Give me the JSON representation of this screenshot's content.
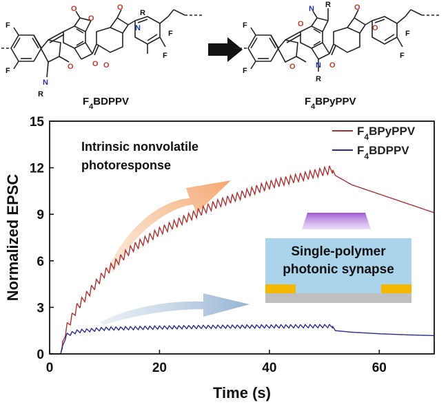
{
  "structures": {
    "left_label": {
      "base": "F",
      "sub": "4",
      "rest": "BDPPV"
    },
    "right_label": {
      "base": "F",
      "sub": "4",
      "rest": "BPyPPV"
    },
    "atoms": {
      "fluorine": "F",
      "oxygen": "O",
      "nitrogen": "N",
      "alkyl": "R"
    }
  },
  "inset": {
    "line1": "Single-polymer",
    "line2": "photonic synapse",
    "colors": {
      "box": "#a9d4ec",
      "light": "#9b59d0",
      "electrode": "#f5b800",
      "substrate": "#bfbfbf"
    }
  },
  "annotation": {
    "line1": "Intrinsic nonvolatile",
    "line2": "photoresponse"
  },
  "chart_data": {
    "type": "line",
    "xlabel": "Time (s)",
    "ylabel": "Normalized EPSC",
    "xlim": [
      0,
      70
    ],
    "ylim": [
      0,
      15
    ],
    "xticks": [
      0,
      20,
      40,
      60
    ],
    "yticks": [
      0,
      3,
      6,
      9,
      12,
      15
    ],
    "legend_position": "top-right",
    "light_pulses": {
      "start_s": 2,
      "end_s": 51.5,
      "count": 56
    },
    "series": [
      {
        "name": "F4BPyPPV",
        "legend": {
          "base": "F",
          "sub": "4",
          "rest": "BPyPPV"
        },
        "color": "#b03030",
        "points": [
          [
            0,
            0
          ],
          [
            2,
            0
          ],
          [
            3,
            1.6
          ],
          [
            5,
            3.0
          ],
          [
            10,
            5.2
          ],
          [
            15,
            6.8
          ],
          [
            20,
            7.9
          ],
          [
            30,
            9.6
          ],
          [
            40,
            10.9
          ],
          [
            51.5,
            11.9
          ],
          [
            52,
            11.5
          ],
          [
            55,
            10.9
          ],
          [
            60,
            10.3
          ],
          [
            65,
            9.7
          ],
          [
            70,
            9.1
          ]
        ]
      },
      {
        "name": "F4BDPPV",
        "legend": {
          "base": "F",
          "sub": "4",
          "rest": "BDPPV"
        },
        "color": "#2b2b8f",
        "points": [
          [
            0,
            0
          ],
          [
            2,
            0
          ],
          [
            3,
            1.2
          ],
          [
            5,
            1.45
          ],
          [
            10,
            1.62
          ],
          [
            20,
            1.7
          ],
          [
            30,
            1.75
          ],
          [
            40,
            1.77
          ],
          [
            51.5,
            1.79
          ],
          [
            52,
            1.5
          ],
          [
            55,
            1.4
          ],
          [
            60,
            1.3
          ],
          [
            65,
            1.23
          ],
          [
            70,
            1.18
          ]
        ]
      }
    ]
  }
}
